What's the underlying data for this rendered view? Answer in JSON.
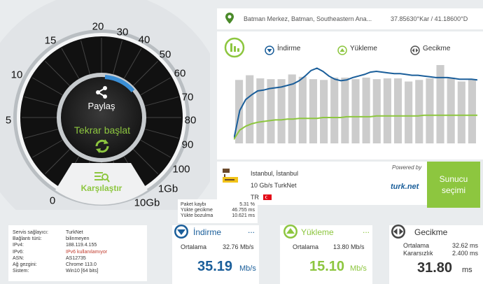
{
  "gauge": {
    "ticks": [
      "0",
      "5",
      "10",
      "15",
      "20",
      "30",
      "40",
      "50",
      "60",
      "70",
      "80",
      "90",
      "100",
      "1Gb",
      "10Gb"
    ],
    "share_label": "Paylaş",
    "restart_label": "Tekrar başlat",
    "compare_label": "Karşılaştır"
  },
  "location": {
    "name": "Batman Merkez, Batman, Southeastern Ana...",
    "coords": "37.85630°Kar / 41.18600°D"
  },
  "legend": {
    "download": "İndirme",
    "upload": "Yükleme",
    "latency": "Gecikme"
  },
  "colors": {
    "download": "#1a5e9a",
    "upload": "#8dc63f",
    "bar": "#cccccc"
  },
  "chart_data": {
    "type": "line",
    "bars": [
      0.81,
      0.87,
      0.83,
      0.82,
      0.82,
      0.88,
      0.85,
      0.82,
      0.81,
      0.84,
      0.84,
      0.82,
      0.84,
      0.82,
      0.83,
      0.83,
      0.79,
      0.81,
      0.83,
      1.0,
      0.84,
      0.79,
      0.82
    ],
    "download": [
      0.05,
      0.42,
      0.56,
      0.62,
      0.67,
      0.68,
      0.7,
      0.71,
      0.72,
      0.74,
      0.76,
      0.8,
      0.86,
      0.93,
      0.96,
      0.92,
      0.86,
      0.82,
      0.8,
      0.81,
      0.84,
      0.86,
      0.88,
      0.91,
      0.92,
      0.91,
      0.9,
      0.89,
      0.89,
      0.88,
      0.87,
      0.87,
      0.86,
      0.85,
      0.84,
      0.84,
      0.84,
      0.83,
      0.82,
      0.82,
      0.82,
      0.81
    ],
    "upload": [
      0.05,
      0.17,
      0.22,
      0.25,
      0.27,
      0.28,
      0.29,
      0.3,
      0.3,
      0.31,
      0.31,
      0.32,
      0.32,
      0.32,
      0.32,
      0.33,
      0.33,
      0.33,
      0.33,
      0.34,
      0.34,
      0.34,
      0.34,
      0.34,
      0.35,
      0.35,
      0.35,
      0.35,
      0.35,
      0.35,
      0.35,
      0.35,
      0.36,
      0.36,
      0.36,
      0.36,
      0.36,
      0.36,
      0.36,
      0.36,
      0.36,
      0.36
    ]
  },
  "server": {
    "city": "Istanbul, İstanbul",
    "provider": "10 Gb/s TurkNet",
    "country": "TR",
    "powered_by": "Powered by",
    "brand": "turk.net",
    "button": "Sunucu seçimi"
  },
  "latency_info": [
    {
      "label": "Paket kaybı",
      "value": "5.31 %"
    },
    {
      "label": "Yükte gecikme",
      "value": "46.755 ms"
    },
    {
      "label": "Yükte bozulma",
      "value": "10.621 ms"
    }
  ],
  "info": [
    {
      "label": "Servis sağlayıcı:",
      "value": "TurkNet",
      "alert": false
    },
    {
      "label": "Bağlantı türü:",
      "value": "bilinmeyen",
      "alert": false
    },
    {
      "label": "IPv4:",
      "value": "188.119.4.155",
      "alert": false
    },
    {
      "label": "IPv6:",
      "value": "IPv6 kullanılamıyor",
      "alert": true
    },
    {
      "label": "ASN:",
      "value": "AS12735",
      "alert": false
    },
    {
      "label": "Ağ gezgini:",
      "value": "Chrome 113.0",
      "alert": false
    },
    {
      "label": "Sistem:",
      "value": "Win10 [64 bits]",
      "alert": false
    }
  ],
  "results": {
    "download": {
      "title": "İndirme",
      "avg_label": "Ortalama",
      "avg": "32.76 Mb/s",
      "value": "35.19",
      "unit": "Mb/s"
    },
    "upload": {
      "title": "Yükleme",
      "avg_label": "Ortalama",
      "avg": "13.80 Mb/s",
      "value": "15.10",
      "unit": "Mb/s"
    },
    "latency": {
      "title": "Gecikme",
      "avg_label": "Ortalama",
      "avg": "32.62 ms",
      "jitter_label": "Kararsızlık",
      "jitter": "2.400 ms",
      "value": "31.80",
      "unit": "ms"
    }
  },
  "more": "..."
}
